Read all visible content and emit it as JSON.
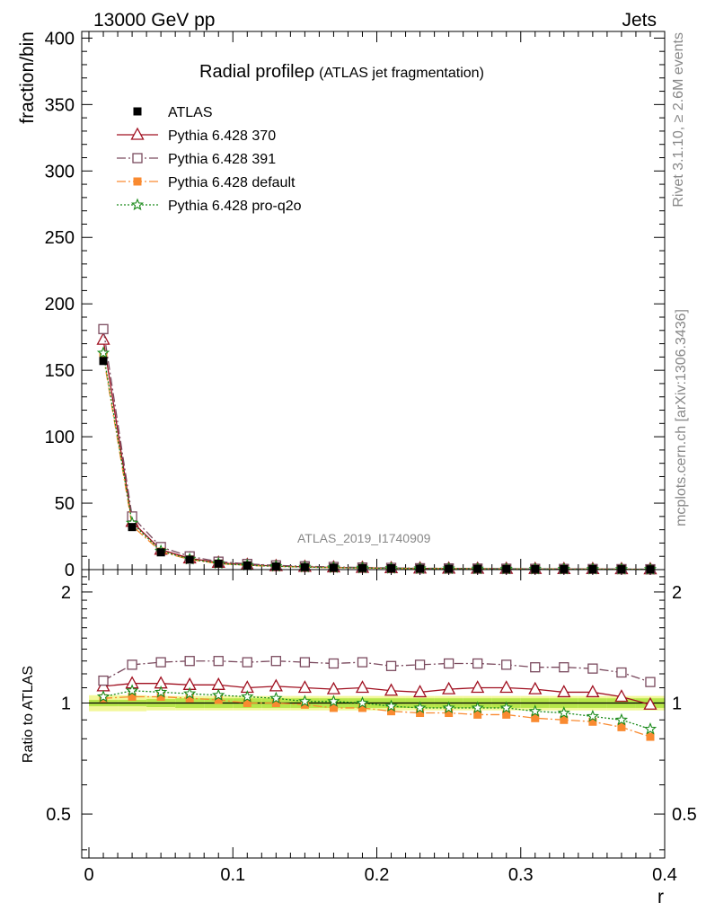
{
  "header": {
    "left": "13000 GeV pp",
    "right": "Jets"
  },
  "side_labels": {
    "top": "Rivet 3.1.10, ≥ 2.6M events",
    "bottom": "mcplots.cern.ch [arXiv:1306.3436]"
  },
  "colors": {
    "atlas": "#000000",
    "p370": "#a01020",
    "p391": "#7a4a5e",
    "pdefault": "#f98a30",
    "pq2o": "#1a8a1a",
    "band_inner": "#b6e64a",
    "band_outer": "#f2f79a"
  },
  "chart_data": [
    {
      "type": "line",
      "title": "Radial profileρ",
      "subtitle": "(ATLAS jet fragmentation)",
      "watermark": "ATLAS_2019_I1740909",
      "xlabel": "",
      "ylabel": "fraction/bin",
      "xlim": [
        -0.005,
        0.4
      ],
      "ylim": [
        0,
        405
      ],
      "yticks": [
        0,
        50,
        100,
        150,
        200,
        250,
        300,
        350,
        400
      ],
      "legend_placement": "top-left",
      "x": [
        0.01,
        0.03,
        0.05,
        0.07,
        0.09,
        0.11,
        0.13,
        0.15,
        0.17,
        0.19,
        0.21,
        0.23,
        0.25,
        0.27,
        0.29,
        0.31,
        0.33,
        0.35,
        0.37,
        0.39
      ],
      "series": [
        {
          "name": "ATLAS",
          "key": "atlas",
          "marker": "square-filled",
          "line": "none",
          "values": [
            157,
            32,
            13,
            7.5,
            4.5,
            3.2,
            2.4,
            1.9,
            1.5,
            1.2,
            1.0,
            0.8,
            0.7,
            0.6,
            0.5,
            0.45,
            0.4,
            0.35,
            0.3,
            0.25
          ]
        },
        {
          "name": "Pythia 6.428 370",
          "key": "p370",
          "marker": "triangle-open",
          "line": "solid",
          "values": [
            173,
            36,
            15,
            8.5,
            5.2,
            3.6,
            2.7,
            2.1,
            1.7,
            1.4,
            1.1,
            0.9,
            0.8,
            0.7,
            0.6,
            0.5,
            0.45,
            0.4,
            0.33,
            0.26
          ]
        },
        {
          "name": "Pythia 6.428 391",
          "key": "p391",
          "marker": "square-open",
          "line": "dashdot",
          "values": [
            181,
            40,
            17,
            10,
            6.0,
            4.3,
            3.2,
            2.5,
            2.0,
            1.6,
            1.3,
            1.05,
            0.93,
            0.8,
            0.67,
            0.59,
            0.52,
            0.46,
            0.39,
            0.29
          ]
        },
        {
          "name": "Pythia 6.428 default",
          "key": "pdefault",
          "marker": "square-filled",
          "line": "dashdot",
          "values": [
            161,
            33,
            13.5,
            7.6,
            4.5,
            3.2,
            2.4,
            1.9,
            1.45,
            1.15,
            0.95,
            0.75,
            0.66,
            0.56,
            0.46,
            0.41,
            0.36,
            0.31,
            0.26,
            0.2
          ]
        },
        {
          "name": "Pythia 6.428 pro-q2o",
          "key": "pq2o",
          "marker": "star",
          "line": "dotted",
          "values": [
            163,
            35,
            14,
            7.9,
            4.7,
            3.3,
            2.5,
            1.9,
            1.5,
            1.2,
            0.97,
            0.77,
            0.68,
            0.58,
            0.48,
            0.43,
            0.37,
            0.32,
            0.27,
            0.21
          ]
        }
      ]
    },
    {
      "type": "line",
      "ylabel": "Ratio to ATLAS",
      "xlabel": "r",
      "xlim": [
        -0.005,
        0.4
      ],
      "ylim": [
        0.38,
        2.3
      ],
      "ylog": true,
      "yticks": [
        0.5,
        1,
        2
      ],
      "xticks": [
        0,
        0.1,
        0.2,
        0.3,
        0.4
      ],
      "x": [
        0.01,
        0.03,
        0.05,
        0.07,
        0.09,
        0.11,
        0.13,
        0.15,
        0.17,
        0.19,
        0.21,
        0.23,
        0.25,
        0.27,
        0.29,
        0.31,
        0.33,
        0.35,
        0.37,
        0.39
      ],
      "band_inner": [
        0.02,
        0.02,
        0.025,
        0.03,
        0.03,
        0.03,
        0.03,
        0.03,
        0.03,
        0.03,
        0.03,
        0.03,
        0.03,
        0.03,
        0.03,
        0.03,
        0.03,
        0.03,
        0.03,
        0.03
      ],
      "band_outer": [
        0.05,
        0.05,
        0.045,
        0.045,
        0.045,
        0.045,
        0.045,
        0.045,
        0.045,
        0.045,
        0.045,
        0.045,
        0.045,
        0.045,
        0.045,
        0.045,
        0.045,
        0.045,
        0.045,
        0.045
      ],
      "series": [
        {
          "key": "p370",
          "marker": "triangle-open",
          "line": "solid",
          "values": [
            1.11,
            1.13,
            1.13,
            1.12,
            1.12,
            1.1,
            1.11,
            1.1,
            1.09,
            1.1,
            1.08,
            1.07,
            1.09,
            1.1,
            1.1,
            1.09,
            1.07,
            1.07,
            1.04,
            0.99
          ]
        },
        {
          "key": "p391",
          "marker": "square-open",
          "line": "dashdot",
          "values": [
            1.15,
            1.27,
            1.29,
            1.3,
            1.3,
            1.29,
            1.3,
            1.29,
            1.28,
            1.29,
            1.26,
            1.27,
            1.28,
            1.28,
            1.27,
            1.25,
            1.25,
            1.24,
            1.21,
            1.14
          ]
        },
        {
          "key": "pdefault",
          "marker": "square-filled",
          "line": "dashdot",
          "values": [
            1.03,
            1.04,
            1.04,
            1.03,
            1.02,
            1.0,
            1.0,
            0.99,
            0.97,
            0.97,
            0.95,
            0.94,
            0.94,
            0.93,
            0.93,
            0.91,
            0.9,
            0.89,
            0.86,
            0.81
          ]
        },
        {
          "key": "pq2o",
          "marker": "star",
          "line": "dotted",
          "values": [
            1.04,
            1.08,
            1.07,
            1.06,
            1.05,
            1.04,
            1.03,
            1.01,
            1.01,
            1.0,
            0.98,
            0.97,
            0.97,
            0.97,
            0.97,
            0.95,
            0.94,
            0.92,
            0.9,
            0.85
          ]
        }
      ]
    }
  ]
}
